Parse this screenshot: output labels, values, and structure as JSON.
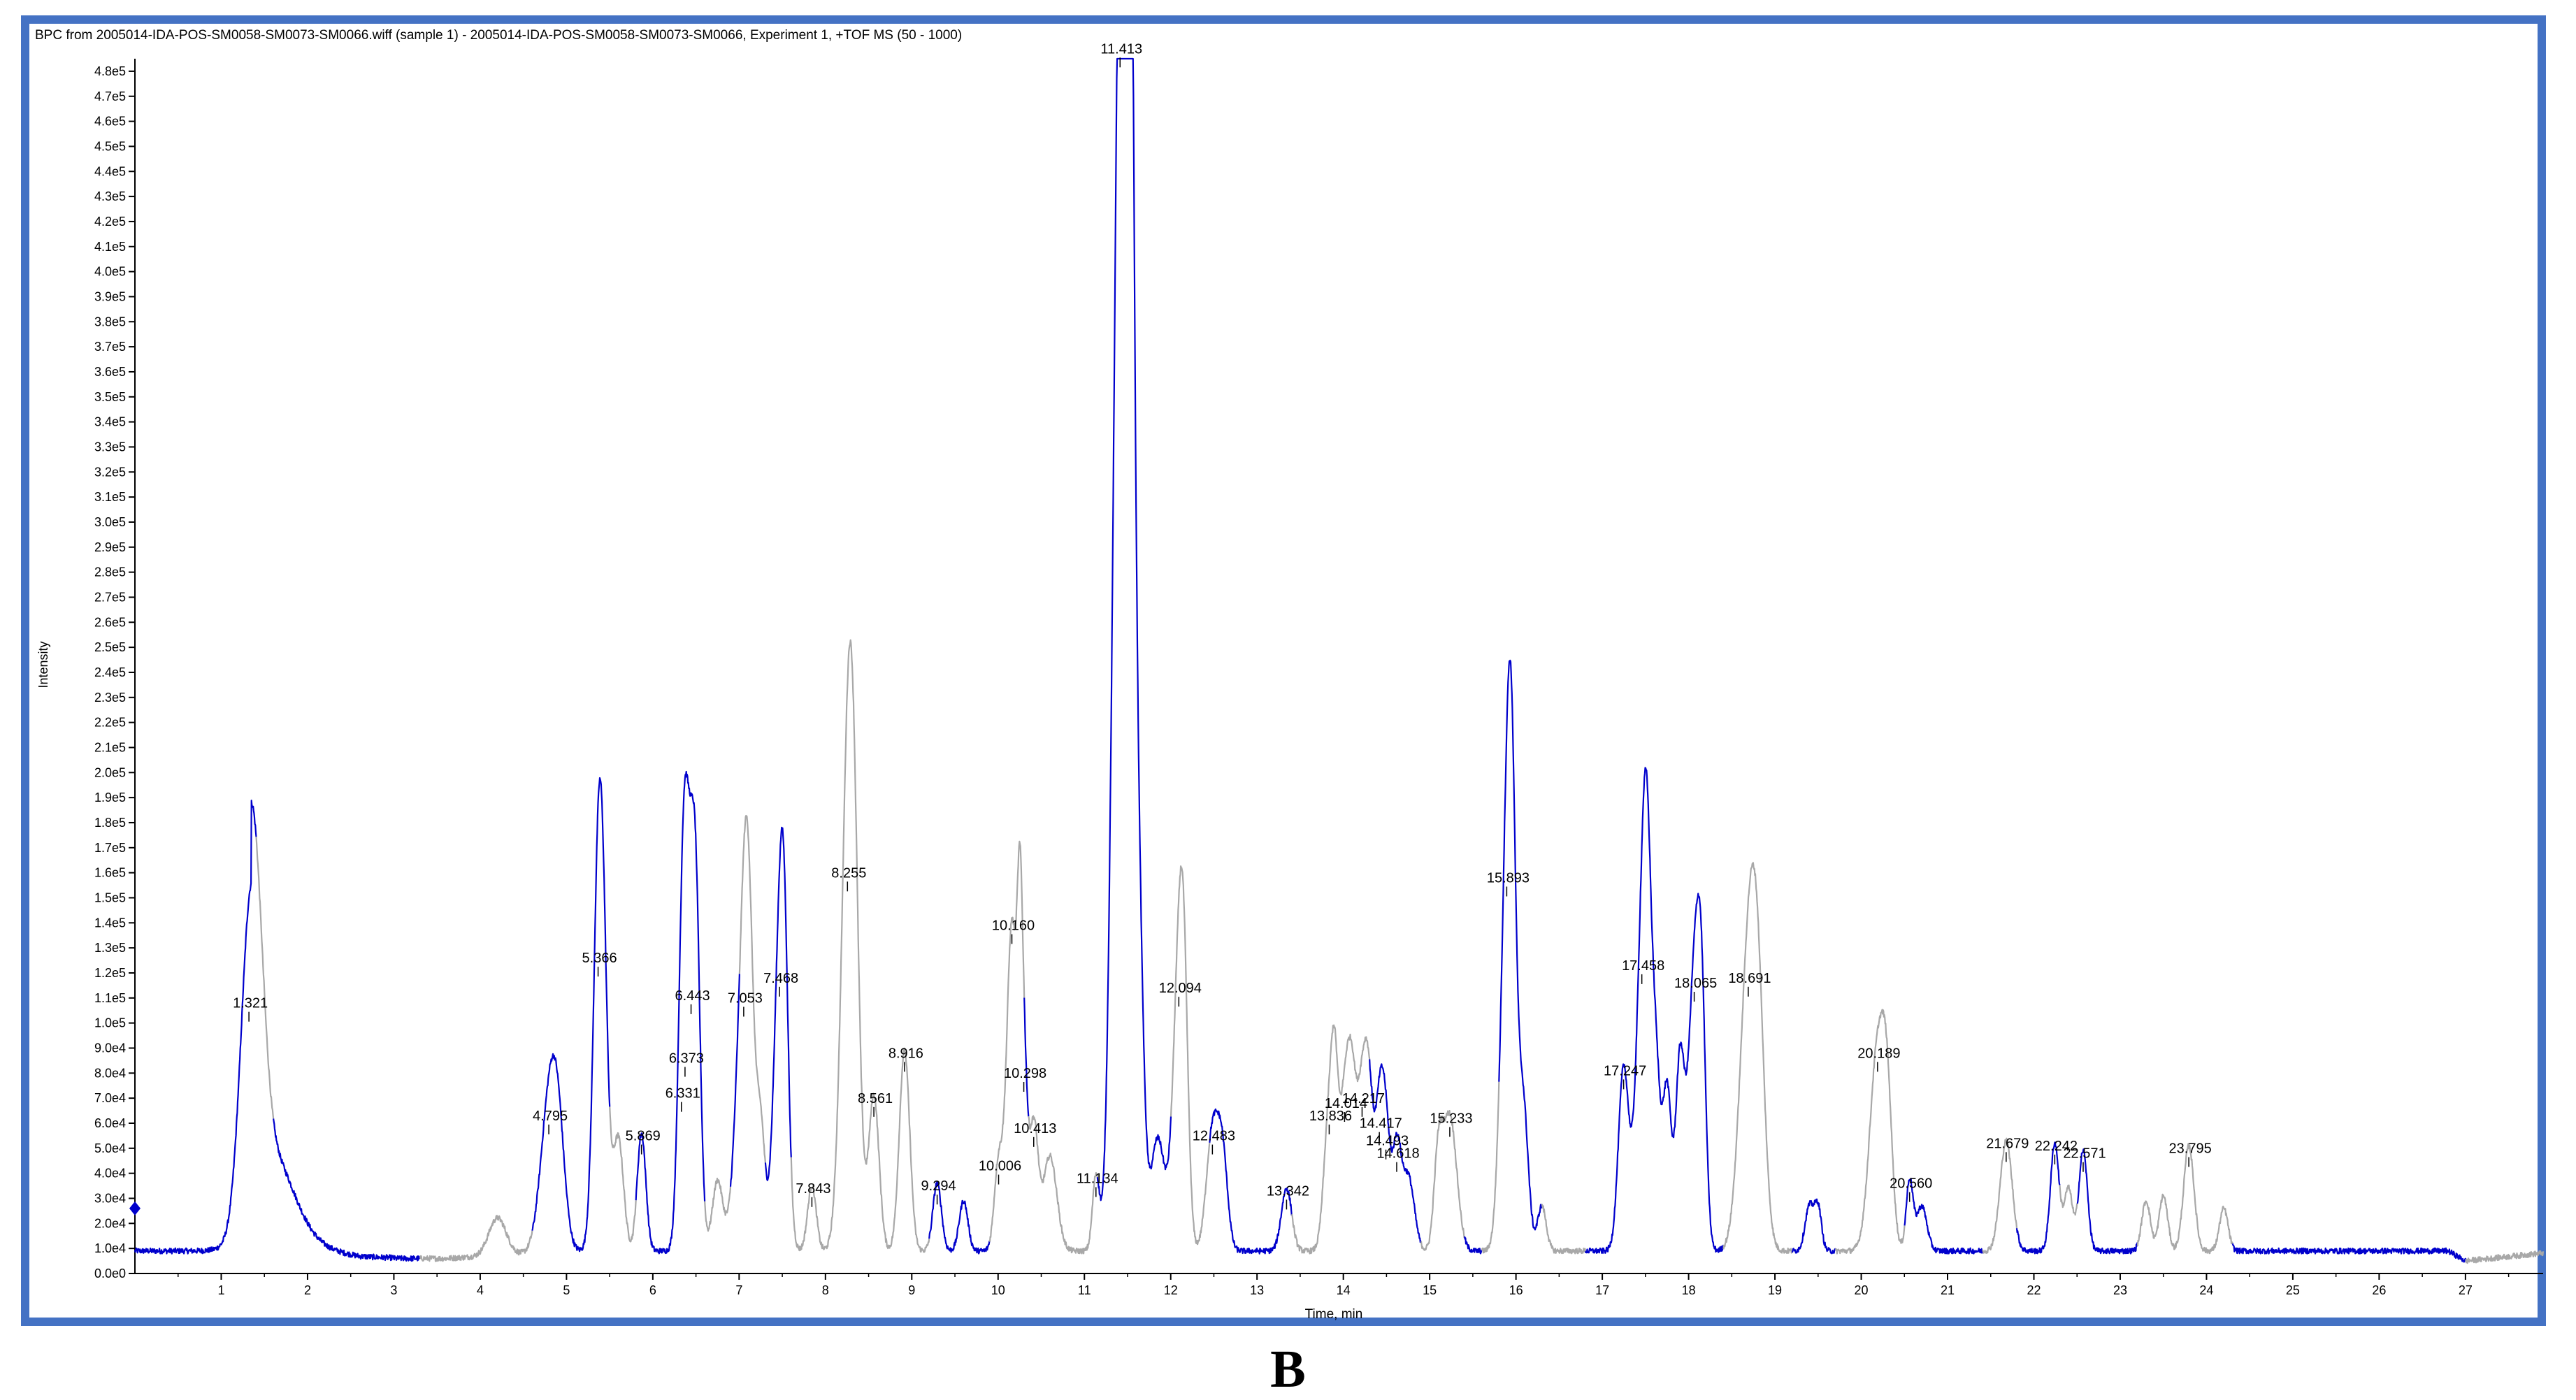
{
  "chart_data": {
    "type": "line",
    "title": "BPC from 2005014-IDA-POS-SM0058-SM0073-SM0066.wiff (sample 1) - 2005014-IDA-POS-SM0058-SM0073-SM0066, Experiment 1, +TOF MS (50 - 1000)",
    "xlabel": "Time, min",
    "ylabel": "Intensity",
    "xlim": [
      0,
      27.9
    ],
    "ylim": [
      0,
      485000
    ],
    "x_ticks": [
      {
        "value": 1,
        "label": "1"
      },
      {
        "value": 2,
        "label": "2"
      },
      {
        "value": 3,
        "label": "3"
      },
      {
        "value": 4,
        "label": "4"
      },
      {
        "value": 5,
        "label": "5"
      },
      {
        "value": 6,
        "label": "6"
      },
      {
        "value": 7,
        "label": "7"
      },
      {
        "value": 8,
        "label": "8"
      },
      {
        "value": 9,
        "label": "9"
      },
      {
        "value": 10,
        "label": "10"
      },
      {
        "value": 11,
        "label": "11"
      },
      {
        "value": 12,
        "label": "12"
      },
      {
        "value": 13,
        "label": "13"
      },
      {
        "value": 14,
        "label": "14"
      },
      {
        "value": 15,
        "label": "15"
      },
      {
        "value": 16,
        "label": "16"
      },
      {
        "value": 17,
        "label": "17"
      },
      {
        "value": 18,
        "label": "18"
      },
      {
        "value": 19,
        "label": "19"
      },
      {
        "value": 20,
        "label": "20"
      },
      {
        "value": 21,
        "label": "21"
      },
      {
        "value": 22,
        "label": "22"
      },
      {
        "value": 23,
        "label": "23"
      },
      {
        "value": 24,
        "label": "24"
      },
      {
        "value": 25,
        "label": "25"
      },
      {
        "value": 26,
        "label": "26"
      },
      {
        "value": 27,
        "label": "27"
      }
    ],
    "y_ticks": [
      {
        "value": 0,
        "label": "0.0e0"
      },
      {
        "value": 10000,
        "label": "1.0e4"
      },
      {
        "value": 20000,
        "label": "2.0e4"
      },
      {
        "value": 30000,
        "label": "3.0e4"
      },
      {
        "value": 40000,
        "label": "4.0e4"
      },
      {
        "value": 50000,
        "label": "5.0e4"
      },
      {
        "value": 60000,
        "label": "6.0e4"
      },
      {
        "value": 70000,
        "label": "7.0e4"
      },
      {
        "value": 80000,
        "label": "8.0e4"
      },
      {
        "value": 90000,
        "label": "9.0e4"
      },
      {
        "value": 100000,
        "label": "1.0e5"
      },
      {
        "value": 110000,
        "label": "1.1e5"
      },
      {
        "value": 120000,
        "label": "1.2e5"
      },
      {
        "value": 130000,
        "label": "1.3e5"
      },
      {
        "value": 140000,
        "label": "1.4e5"
      },
      {
        "value": 150000,
        "label": "1.5e5"
      },
      {
        "value": 160000,
        "label": "1.6e5"
      },
      {
        "value": 170000,
        "label": "1.7e5"
      },
      {
        "value": 180000,
        "label": "1.8e5"
      },
      {
        "value": 190000,
        "label": "1.9e5"
      },
      {
        "value": 200000,
        "label": "2.0e5"
      },
      {
        "value": 210000,
        "label": "2.1e5"
      },
      {
        "value": 220000,
        "label": "2.2e5"
      },
      {
        "value": 230000,
        "label": "2.3e5"
      },
      {
        "value": 240000,
        "label": "2.4e5"
      },
      {
        "value": 250000,
        "label": "2.5e5"
      },
      {
        "value": 260000,
        "label": "2.6e5"
      },
      {
        "value": 270000,
        "label": "2.7e5"
      },
      {
        "value": 280000,
        "label": "2.8e5"
      },
      {
        "value": 290000,
        "label": "2.9e5"
      },
      {
        "value": 300000,
        "label": "3.0e5"
      },
      {
        "value": 310000,
        "label": "3.1e5"
      },
      {
        "value": 320000,
        "label": "3.2e5"
      },
      {
        "value": 330000,
        "label": "3.3e5"
      },
      {
        "value": 340000,
        "label": "3.4e5"
      },
      {
        "value": 350000,
        "label": "3.5e5"
      },
      {
        "value": 360000,
        "label": "3.6e5"
      },
      {
        "value": 370000,
        "label": "3.7e5"
      },
      {
        "value": 380000,
        "label": "3.8e5"
      },
      {
        "value": 390000,
        "label": "3.9e5"
      },
      {
        "value": 400000,
        "label": "4.0e5"
      },
      {
        "value": 410000,
        "label": "4.1e5"
      },
      {
        "value": 420000,
        "label": "4.2e5"
      },
      {
        "value": 430000,
        "label": "4.3e5"
      },
      {
        "value": 440000,
        "label": "4.4e5"
      },
      {
        "value": 450000,
        "label": "4.5e5"
      },
      {
        "value": 460000,
        "label": "4.6e5"
      },
      {
        "value": 470000,
        "label": "4.7e5"
      },
      {
        "value": 480000,
        "label": "4.8e5"
      }
    ],
    "grid": false,
    "baseline": 9000,
    "trace_colors": {
      "blue": "#0000cc",
      "gray": "#a8a8a8"
    },
    "gray_segments": [
      [
        1.4,
        1.6
      ],
      [
        3.3,
        4.6
      ],
      [
        5.5,
        5.8
      ],
      [
        6.6,
        6.9
      ],
      [
        7.0,
        7.3
      ],
      [
        7.6,
        8.1
      ],
      [
        8.1,
        9.2
      ],
      [
        9.9,
        10.3
      ],
      [
        10.35,
        11.15
      ],
      [
        12.0,
        12.45
      ],
      [
        13.4,
        14.3
      ],
      [
        14.9,
        15.4
      ],
      [
        15.6,
        15.8
      ],
      [
        16.3,
        16.8
      ],
      [
        18.4,
        19.2
      ],
      [
        19.7,
        20.5
      ],
      [
        21.4,
        21.8
      ],
      [
        22.3,
        22.5
      ],
      [
        23.2,
        24.3
      ],
      [
        27.0,
        27.9
      ]
    ],
    "peaks": [
      {
        "rt": 1.321,
        "intensity": 100000,
        "label": "1.321",
        "width": 0.11
      },
      {
        "rt": 4.795,
        "intensity": 55000,
        "label": "4.795",
        "width": 0.1
      },
      {
        "rt": 5.366,
        "intensity": 118000,
        "label": "5.366",
        "width": 0.06
      },
      {
        "rt": 5.869,
        "intensity": 47000,
        "label": "5.869",
        "width": 0.05
      },
      {
        "rt": 6.331,
        "intensity": 64000,
        "label": "6.331",
        "width": 0.05
      },
      {
        "rt": 6.373,
        "intensity": 78000,
        "label": "6.373",
        "width": 0.05
      },
      {
        "rt": 6.443,
        "intensity": 103000,
        "label": "6.443",
        "width": 0.07
      },
      {
        "rt": 7.053,
        "intensity": 102000,
        "label": "7.053",
        "width": 0.09
      },
      {
        "rt": 7.468,
        "intensity": 110000,
        "label": "7.468",
        "width": 0.07
      },
      {
        "rt": 7.843,
        "intensity": 26000,
        "label": "7.843",
        "width": 0.05
      },
      {
        "rt": 8.255,
        "intensity": 152000,
        "label": "8.255",
        "width": 0.08
      },
      {
        "rt": 8.561,
        "intensity": 62000,
        "label": "8.561",
        "width": 0.06
      },
      {
        "rt": 8.916,
        "intensity": 80000,
        "label": "8.916",
        "width": 0.06
      },
      {
        "rt": 9.294,
        "intensity": 27000,
        "label": "9.294",
        "width": 0.05
      },
      {
        "rt": 10.006,
        "intensity": 35000,
        "label": "10.006",
        "width": 0.05
      },
      {
        "rt": 10.16,
        "intensity": 131000,
        "label": "10.160",
        "width": 0.06
      },
      {
        "rt": 10.298,
        "intensity": 72000,
        "label": "10.298",
        "width": 0.04
      },
      {
        "rt": 10.413,
        "intensity": 50000,
        "label": "10.413",
        "width": 0.05
      },
      {
        "rt": 11.134,
        "intensity": 30000,
        "label": "11.134",
        "width": 0.04
      },
      {
        "rt": 11.413,
        "intensity": 481000,
        "label": "11.413",
        "width": 0.08
      },
      {
        "rt": 12.094,
        "intensity": 106000,
        "label": "12.094",
        "width": 0.07
      },
      {
        "rt": 12.483,
        "intensity": 47000,
        "label": "12.483",
        "width": 0.07
      },
      {
        "rt": 13.342,
        "intensity": 25000,
        "label": "13.342",
        "width": 0.06
      },
      {
        "rt": 13.836,
        "intensity": 55000,
        "label": "13.836",
        "width": 0.06
      },
      {
        "rt": 14.014,
        "intensity": 60000,
        "label": "14.014",
        "width": 0.06
      },
      {
        "rt": 14.217,
        "intensity": 62000,
        "label": "14.217",
        "width": 0.06
      },
      {
        "rt": 14.417,
        "intensity": 52000,
        "label": "14.417",
        "width": 0.05
      },
      {
        "rt": 14.493,
        "intensity": 45000,
        "label": "14.493",
        "width": 0.05
      },
      {
        "rt": 14.618,
        "intensity": 40000,
        "label": "14.618",
        "width": 0.05
      },
      {
        "rt": 15.233,
        "intensity": 54000,
        "label": "15.233",
        "width": 0.08
      },
      {
        "rt": 15.893,
        "intensity": 150000,
        "label": "15.893",
        "width": 0.07
      },
      {
        "rt": 17.247,
        "intensity": 73000,
        "label": "17.247",
        "width": 0.06
      },
      {
        "rt": 17.458,
        "intensity": 115000,
        "label": "17.458",
        "width": 0.07
      },
      {
        "rt": 18.065,
        "intensity": 108000,
        "label": "18.065",
        "width": 0.07
      },
      {
        "rt": 18.691,
        "intensity": 110000,
        "label": "18.691",
        "width": 0.1
      },
      {
        "rt": 20.189,
        "intensity": 80000,
        "label": "20.189",
        "width": 0.09
      },
      {
        "rt": 20.56,
        "intensity": 28000,
        "label": "20.560",
        "width": 0.04
      },
      {
        "rt": 21.679,
        "intensity": 44000,
        "label": "21.679",
        "width": 0.07
      },
      {
        "rt": 22.242,
        "intensity": 43000,
        "label": "22.242",
        "width": 0.05
      },
      {
        "rt": 22.571,
        "intensity": 40000,
        "label": "22.571",
        "width": 0.05
      },
      {
        "rt": 23.795,
        "intensity": 42000,
        "label": "23.795",
        "width": 0.06
      }
    ],
    "minor_peaks": [
      {
        "rt": 1.42,
        "intensity": 45000,
        "width": 0.1
      },
      {
        "rt": 1.6,
        "intensity": 25000,
        "width": 0.25
      },
      {
        "rt": 4.2,
        "intensity": 15000,
        "width": 0.1
      },
      {
        "rt": 4.9,
        "intensity": 38000,
        "width": 0.08
      },
      {
        "rt": 5.42,
        "intensity": 90000,
        "width": 0.06
      },
      {
        "rt": 5.6,
        "intensity": 45000,
        "width": 0.06
      },
      {
        "rt": 6.5,
        "intensity": 85000,
        "width": 0.05
      },
      {
        "rt": 6.75,
        "intensity": 28000,
        "width": 0.06
      },
      {
        "rt": 7.1,
        "intensity": 80000,
        "width": 0.06
      },
      {
        "rt": 7.25,
        "intensity": 45000,
        "width": 0.05
      },
      {
        "rt": 7.52,
        "intensity": 75000,
        "width": 0.05
      },
      {
        "rt": 8.32,
        "intensity": 115000,
        "width": 0.07
      },
      {
        "rt": 9.6,
        "intensity": 20000,
        "width": 0.05
      },
      {
        "rt": 10.25,
        "intensity": 85000,
        "width": 0.03
      },
      {
        "rt": 10.6,
        "intensity": 38000,
        "width": 0.08
      },
      {
        "rt": 11.48,
        "intensity": 360000,
        "width": 0.05
      },
      {
        "rt": 11.53,
        "intensity": 290000,
        "width": 0.05
      },
      {
        "rt": 11.62,
        "intensity": 140000,
        "width": 0.06
      },
      {
        "rt": 11.85,
        "intensity": 45000,
        "width": 0.08
      },
      {
        "rt": 12.15,
        "intensity": 65000,
        "width": 0.05
      },
      {
        "rt": 12.6,
        "intensity": 36000,
        "width": 0.06
      },
      {
        "rt": 13.9,
        "intensity": 48000,
        "width": 0.04
      },
      {
        "rt": 14.1,
        "intensity": 52000,
        "width": 0.05
      },
      {
        "rt": 14.3,
        "intensity": 50000,
        "width": 0.05
      },
      {
        "rt": 14.75,
        "intensity": 30000,
        "width": 0.07
      },
      {
        "rt": 15.1,
        "intensity": 35000,
        "width": 0.05
      },
      {
        "rt": 15.95,
        "intensity": 112000,
        "width": 0.05
      },
      {
        "rt": 16.08,
        "intensity": 60000,
        "width": 0.06
      },
      {
        "rt": 16.3,
        "intensity": 18000,
        "width": 0.05
      },
      {
        "rt": 17.52,
        "intensity": 100000,
        "width": 0.05
      },
      {
        "rt": 17.62,
        "intensity": 70000,
        "width": 0.05
      },
      {
        "rt": 17.75,
        "intensity": 65000,
        "width": 0.05
      },
      {
        "rt": 17.9,
        "intensity": 75000,
        "width": 0.05
      },
      {
        "rt": 18.15,
        "intensity": 75000,
        "width": 0.05
      },
      {
        "rt": 18.8,
        "intensity": 75000,
        "width": 0.08
      },
      {
        "rt": 19.4,
        "intensity": 18000,
        "width": 0.05
      },
      {
        "rt": 19.5,
        "intensity": 17000,
        "width": 0.04
      },
      {
        "rt": 20.3,
        "intensity": 45000,
        "width": 0.06
      },
      {
        "rt": 20.7,
        "intensity": 18000,
        "width": 0.06
      },
      {
        "rt": 22.4,
        "intensity": 25000,
        "width": 0.05
      },
      {
        "rt": 23.3,
        "intensity": 20000,
        "width": 0.05
      },
      {
        "rt": 23.5,
        "intensity": 22000,
        "width": 0.05
      },
      {
        "rt": 24.2,
        "intensity": 17000,
        "width": 0.05
      }
    ]
  },
  "caption": "B"
}
